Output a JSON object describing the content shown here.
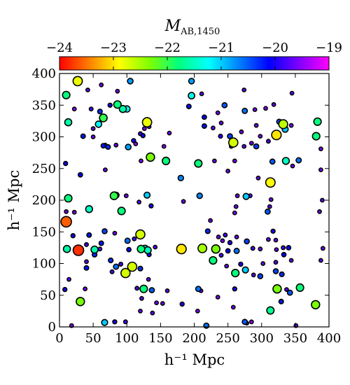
{
  "chart_data": {
    "type": "scatter",
    "title": "",
    "xlabel": "h⁻¹ Mpc",
    "ylabel": "h⁻¹ Mpc",
    "xlim": [
      0,
      400
    ],
    "ylim": [
      0,
      400
    ],
    "xticks": [
      "0",
      "50",
      "100",
      "150",
      "200",
      "250",
      "300",
      "350",
      "400"
    ],
    "yticks": [
      "0",
      "50",
      "100",
      "150",
      "200",
      "250",
      "300",
      "350",
      "400"
    ],
    "grid": false,
    "colorbar": {
      "label_main": "M",
      "label_sub": "AB,1450",
      "range": [
        -24,
        -19
      ],
      "ticks": [
        "−24",
        "−23",
        "−22",
        "−21",
        "−20",
        "−19"
      ],
      "placement": "top",
      "colormap": [
        "#ff0000",
        "#ff8000",
        "#ffff00",
        "#80ff00",
        "#00ff80",
        "#00ffff",
        "#0080ff",
        "#0000ff",
        "#8000ff",
        "#ff00ff"
      ]
    },
    "points": [
      [
        27,
        388,
        -22.8
      ],
      [
        105,
        388,
        -20.8
      ],
      [
        10,
        366,
        -21.8
      ],
      [
        42,
        374,
        -19.7
      ],
      [
        62,
        382,
        -19.6
      ],
      [
        86,
        372,
        -19.6
      ],
      [
        75,
        350,
        -20.0
      ],
      [
        86,
        351,
        -21.8
      ],
      [
        94,
        344,
        -21.6
      ],
      [
        100,
        344,
        -21.2
      ],
      [
        22,
        344,
        -19.5
      ],
      [
        47,
        344,
        -19.8
      ],
      [
        13,
        323,
        -21.6
      ],
      [
        58,
        320,
        -21.2
      ],
      [
        65,
        330,
        -22.0
      ],
      [
        60,
        340,
        -20.3
      ],
      [
        130,
        323,
        -22.8
      ],
      [
        133,
        316,
        -19.7
      ],
      [
        120,
        305,
        -19.8
      ],
      [
        126,
        313,
        -19.5
      ],
      [
        124,
        302,
        -20.0
      ],
      [
        35,
        301,
        -20.2
      ],
      [
        50,
        300,
        -19.6
      ],
      [
        50,
        313,
        -19.6
      ],
      [
        68,
        287,
        -19.6
      ],
      [
        72,
        284,
        -20.3
      ],
      [
        65,
        286,
        -20.2
      ],
      [
        84,
        287,
        -19.7
      ],
      [
        102,
        284,
        -20.8
      ],
      [
        113,
        289,
        -19.5
      ],
      [
        110,
        294,
        -20.0
      ],
      [
        155,
        285,
        -19.5
      ],
      [
        163,
        306,
        -19.6
      ],
      [
        135,
        268,
        -22.3
      ],
      [
        158,
        262,
        -21.8
      ],
      [
        121,
        262,
        -19.5
      ],
      [
        9,
        258,
        -20.0
      ],
      [
        31,
        240,
        -20.1
      ],
      [
        68,
        248,
        -19.6
      ],
      [
        10,
        182,
        -19.6
      ],
      [
        13,
        203,
        -21.8
      ],
      [
        44,
        186,
        -21.5
      ],
      [
        22,
        181,
        -19.6
      ],
      [
        81,
        207,
        -22.0
      ],
      [
        84,
        208,
        -21.0
      ],
      [
        99,
        207,
        -19.6
      ],
      [
        92,
        183,
        -21.8
      ],
      [
        118,
        197,
        -19.7
      ],
      [
        130,
        208,
        -21.0
      ],
      [
        136,
        191,
        -20.0
      ],
      [
        180,
        235,
        -20.7
      ],
      [
        10,
        166,
        -23.6
      ],
      [
        28,
        121,
        -23.8
      ],
      [
        11,
        123,
        -21.6
      ],
      [
        20,
        144,
        -20.0
      ],
      [
        44,
        145,
        -20.2
      ],
      [
        52,
        122,
        -21.6
      ],
      [
        52,
        114,
        -20.3
      ],
      [
        40,
        130,
        -19.8
      ],
      [
        60,
        123,
        -19.7
      ],
      [
        62,
        132,
        -20.2
      ],
      [
        67,
        151,
        -20.4
      ],
      [
        82,
        148,
        -19.6
      ],
      [
        120,
        146,
        -22.7
      ],
      [
        101,
        136,
        -20.6
      ],
      [
        111,
        139,
        -19.8
      ],
      [
        103,
        122,
        -20.1
      ],
      [
        121,
        123,
        -21.8
      ],
      [
        127,
        124,
        -21.2
      ],
      [
        131,
        121,
        -21.5
      ],
      [
        133,
        114,
        -20.0
      ],
      [
        142,
        126,
        -19.7
      ],
      [
        108,
        95,
        -22.7
      ],
      [
        98,
        85,
        -22.7
      ],
      [
        78,
        87,
        -19.8
      ],
      [
        84,
        95,
        -20.6
      ],
      [
        76,
        105,
        -20.3
      ],
      [
        91,
        99,
        -19.8
      ],
      [
        40,
        103,
        -19.6
      ],
      [
        40,
        93,
        -20.2
      ],
      [
        120,
        92,
        -20.3
      ],
      [
        125,
        60,
        -21.8
      ],
      [
        115,
        61,
        -19.8
      ],
      [
        132,
        75,
        -19.7
      ],
      [
        160,
        57,
        -19.7
      ],
      [
        137,
        58,
        -20.5
      ],
      [
        122,
        45,
        -19.7
      ],
      [
        144,
        38,
        -19.6
      ],
      [
        8,
        59,
        -20.0
      ],
      [
        14,
        75,
        -19.7
      ],
      [
        31,
        40,
        -22.3
      ],
      [
        38,
        60,
        -19.6
      ],
      [
        67,
        7,
        -21.0
      ],
      [
        82,
        8,
        -20.0
      ],
      [
        98,
        8,
        -19.8
      ],
      [
        18,
        2,
        -19.5
      ],
      [
        120,
        25,
        -19.6
      ],
      [
        138,
        22,
        -19.7
      ],
      [
        153,
        37,
        -19.6
      ],
      [
        181,
        123,
        -23.0
      ],
      [
        182,
        36,
        -20.0
      ],
      [
        196,
        388,
        -20.8
      ],
      [
        196,
        365,
        -21.3
      ],
      [
        211,
        368,
        -19.7
      ],
      [
        192,
        348,
        -20.2
      ],
      [
        215,
        331,
        -20.1
      ],
      [
        235,
        338,
        -19.6
      ],
      [
        245,
        350,
        -20.5
      ],
      [
        274,
        374,
        -19.7
      ],
      [
        275,
        341,
        -20.6
      ],
      [
        290,
        343,
        -19.6
      ],
      [
        318,
        351,
        -19.7
      ],
      [
        306,
        345,
        -19.5
      ],
      [
        326,
        324,
        -20.4
      ],
      [
        332,
        320,
        -22.6
      ],
      [
        322,
        303,
        -23.0
      ],
      [
        335,
        312,
        -21.0
      ],
      [
        344,
        318,
        -19.5
      ],
      [
        292,
        318,
        -19.6
      ],
      [
        270,
        308,
        -19.6
      ],
      [
        258,
        291,
        -22.7
      ],
      [
        253,
        301,
        -20.4
      ],
      [
        239,
        301,
        -19.9
      ],
      [
        298,
        301,
        -19.6
      ],
      [
        285,
        290,
        -19.6
      ],
      [
        228,
        314,
        -19.6
      ],
      [
        215,
        317,
        -20.2
      ],
      [
        240,
        322,
        -19.6
      ],
      [
        310,
        293,
        -19.8
      ],
      [
        274,
        285,
        -19.7
      ],
      [
        255,
        285,
        -19.6
      ],
      [
        292,
        285,
        -20.4
      ],
      [
        383,
        324,
        -21.8
      ],
      [
        381,
        301,
        -21.8
      ],
      [
        345,
        369,
        -19.7
      ],
      [
        336,
        262,
        -21.5
      ],
      [
        316,
        261,
        -20.5
      ],
      [
        355,
        263,
        -20.6
      ],
      [
        346,
        254,
        -19.6
      ],
      [
        388,
        248,
        -19.6
      ],
      [
        313,
        228,
        -22.9
      ],
      [
        295,
        235,
        -19.6
      ],
      [
        206,
        258,
        -21.8
      ],
      [
        250,
        246,
        -19.6
      ],
      [
        260,
        262,
        -19.6
      ],
      [
        230,
        262,
        -19.6
      ],
      [
        388,
        281,
        -19.6
      ],
      [
        390,
        200,
        -19.7
      ],
      [
        386,
        182,
        -19.6
      ],
      [
        283,
        207,
        -19.7
      ],
      [
        277,
        206,
        -21.0
      ],
      [
        264,
        207,
        -19.6
      ],
      [
        309,
        182,
        -20.5
      ],
      [
        312,
        190,
        -19.7
      ],
      [
        314,
        201,
        -19.6
      ],
      [
        262,
        190,
        -19.6
      ],
      [
        260,
        180,
        -19.6
      ],
      [
        208,
        207,
        -20.7
      ],
      [
        224,
        168,
        -19.6
      ],
      [
        220,
        151,
        -20.3
      ],
      [
        236,
        142,
        -19.6
      ],
      [
        242,
        136,
        -19.6
      ],
      [
        246,
        145,
        -19.8
      ],
      [
        253,
        133,
        -20.0
      ],
      [
        263,
        142,
        -19.6
      ],
      [
        278,
        135,
        -20.4
      ],
      [
        287,
        124,
        -19.8
      ],
      [
        263,
        120,
        -20.6
      ],
      [
        250,
        120,
        -20.1
      ],
      [
        240,
        113,
        -19.8
      ],
      [
        212,
        124,
        -22.5
      ],
      [
        232,
        123,
        -22.3
      ],
      [
        228,
        105,
        -21.8
      ],
      [
        298,
        123,
        -19.6
      ],
      [
        310,
        138,
        -19.6
      ],
      [
        317,
        151,
        -20.0
      ],
      [
        321,
        137,
        -19.6
      ],
      [
        322,
        122,
        -19.7
      ],
      [
        332,
        125,
        -19.8
      ],
      [
        340,
        125,
        -20.1
      ],
      [
        333,
        114,
        -20.1
      ],
      [
        344,
        105,
        -19.6
      ],
      [
        391,
        124,
        -19.6
      ],
      [
        388,
        105,
        -19.7
      ],
      [
        276,
        90,
        -21.0
      ],
      [
        261,
        85,
        -21.8
      ],
      [
        269,
        99,
        -20.0
      ],
      [
        248,
        96,
        -19.6
      ],
      [
        298,
        80,
        -20.4
      ],
      [
        288,
        82,
        -19.7
      ],
      [
        302,
        100,
        -19.6
      ],
      [
        321,
        88,
        -20.4
      ],
      [
        330,
        83,
        -20.3
      ],
      [
        321,
        102,
        -19.7
      ],
      [
        323,
        60,
        -22.3
      ],
      [
        337,
        59,
        -19.7
      ],
      [
        342,
        54,
        -20.5
      ],
      [
        357,
        62,
        -21.8
      ],
      [
        380,
        35,
        -22.3
      ],
      [
        329,
        40,
        -20.2
      ],
      [
        313,
        26,
        -21.7
      ],
      [
        260,
        60,
        -20.0
      ],
      [
        258,
        31,
        -19.6
      ],
      [
        235,
        47,
        -19.6
      ],
      [
        210,
        57,
        -19.7
      ],
      [
        206,
        60,
        -20.6
      ],
      [
        275,
        8,
        -20.5
      ],
      [
        278,
        6,
        -19.7
      ],
      [
        285,
        8,
        -19.5
      ],
      [
        351,
        2,
        -19.6
      ],
      [
        218,
        2,
        -20.6
      ],
      [
        205,
        25,
        -19.6
      ],
      [
        184,
        198,
        -19.6
      ]
    ]
  }
}
